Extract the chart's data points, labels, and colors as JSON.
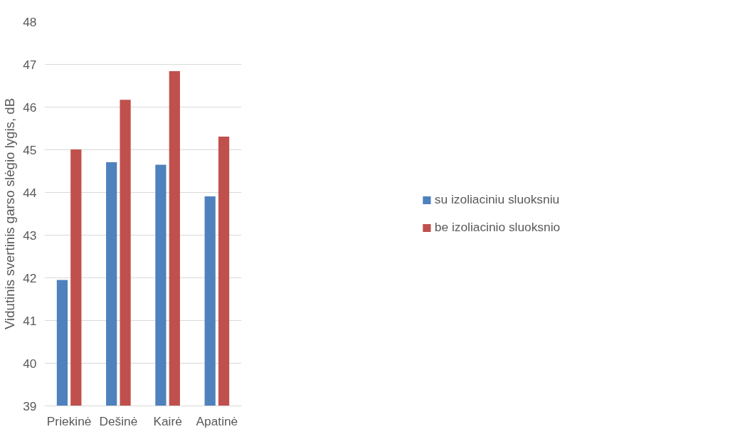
{
  "chart_data": {
    "type": "bar",
    "ylabel": "Vidutinis svertinis garso slėgio lygis, dB",
    "categories": [
      "Priekinė",
      "Dešinė",
      "Kairė",
      "Apatinė"
    ],
    "series": [
      {
        "name": "su izoliaciniu sluoksniu",
        "color": "#4f81bd",
        "values": [
          41.95,
          44.71,
          44.65,
          43.91
        ]
      },
      {
        "name": "be izoliacinio sluoksnio",
        "color": "#c0504d",
        "values": [
          45.01,
          46.17,
          46.84,
          45.31
        ]
      }
    ],
    "ylim": [
      39,
      48
    ],
    "yticks": [
      39,
      40,
      41,
      42,
      43,
      44,
      45,
      46,
      47,
      48
    ],
    "grid": "y",
    "legend": "right"
  }
}
